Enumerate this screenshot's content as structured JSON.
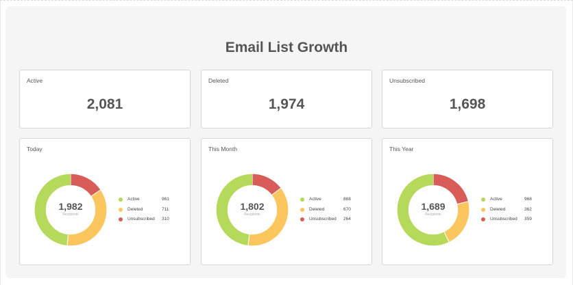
{
  "page": {
    "title": "Email List Growth"
  },
  "stats": [
    {
      "label": "Active",
      "value": "2,081"
    },
    {
      "label": "Deleted",
      "value": "1,974"
    },
    {
      "label": "Unsubscribed",
      "value": "1,698"
    }
  ],
  "colors": {
    "active": "#b5d95a",
    "deleted": "#fbc65e",
    "unsubscribed": "#d85c58"
  },
  "charts": [
    {
      "label": "Today",
      "total": "1,982",
      "sublabel": "Recipients",
      "legend": [
        {
          "name": "Active",
          "value": "961"
        },
        {
          "name": "Deleted",
          "value": "711"
        },
        {
          "name": "Unsubscribed",
          "value": "310"
        }
      ]
    },
    {
      "label": "This Month",
      "total": "1,802",
      "sublabel": "Recipients",
      "legend": [
        {
          "name": "Active",
          "value": "868"
        },
        {
          "name": "Deleted",
          "value": "670"
        },
        {
          "name": "Unsubscribed",
          "value": "264"
        }
      ]
    },
    {
      "label": "This Year",
      "total": "1,689",
      "sublabel": "Recipients",
      "legend": [
        {
          "name": "Active",
          "value": "968"
        },
        {
          "name": "Deleted",
          "value": "362"
        },
        {
          "name": "Unsubscribed",
          "value": "359"
        }
      ]
    }
  ],
  "chart_data": [
    {
      "type": "pie",
      "title": "Today",
      "categories": [
        "Active",
        "Deleted",
        "Unsubscribed"
      ],
      "values": [
        961,
        711,
        310
      ]
    },
    {
      "type": "pie",
      "title": "This Month",
      "categories": [
        "Active",
        "Deleted",
        "Unsubscribed"
      ],
      "values": [
        868,
        670,
        264
      ]
    },
    {
      "type": "pie",
      "title": "This Year",
      "categories": [
        "Active",
        "Deleted",
        "Unsubscribed"
      ],
      "values": [
        968,
        362,
        359
      ]
    }
  ]
}
